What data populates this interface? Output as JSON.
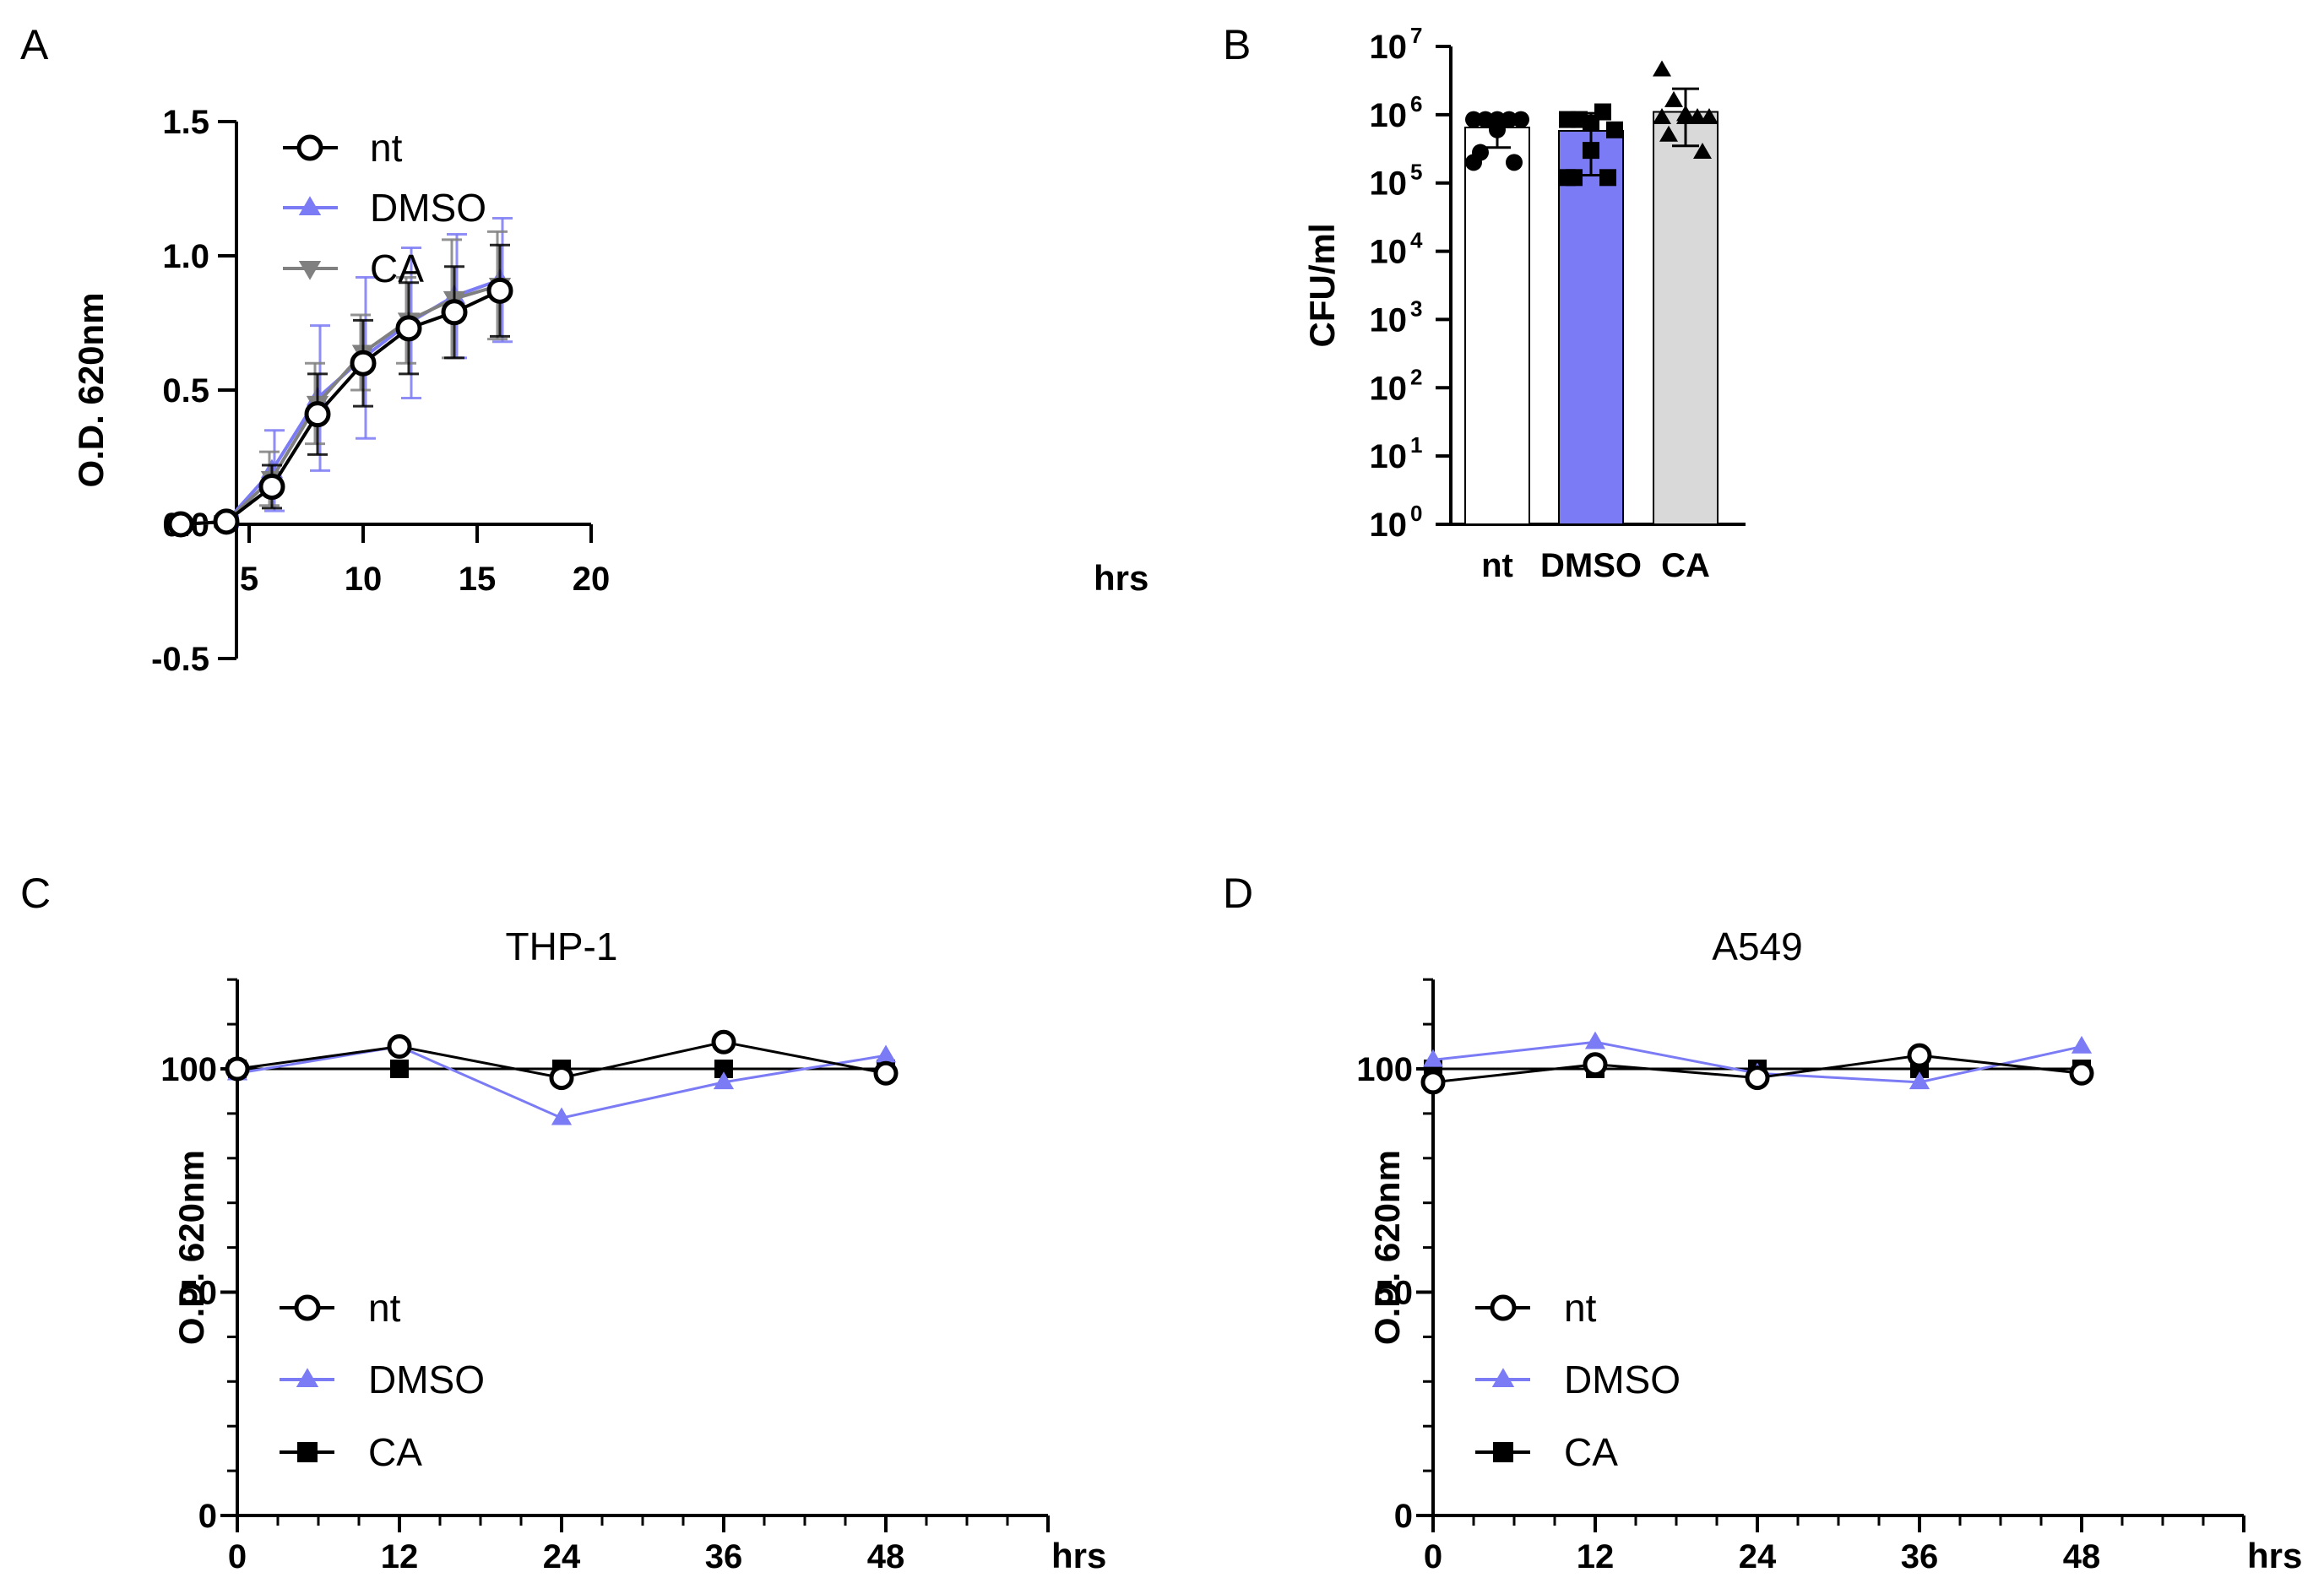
{
  "chart_data": [
    {
      "panel": "A",
      "type": "line",
      "title": "",
      "xlabel": "hrs",
      "ylabel": "O.D. 620nm",
      "xlim": [
        0,
        20
      ],
      "ylim": [
        -0.5,
        1.5
      ],
      "xticks": [
        5,
        10,
        15,
        20
      ],
      "yticks": [
        -0.5,
        0.0,
        0.5,
        1.0,
        1.5
      ],
      "ytick_labels": [
        "-0.5",
        "0.0",
        "0.5",
        "1.0",
        "1.5"
      ],
      "x": [
        2,
        4,
        6,
        8,
        10,
        12,
        14,
        16
      ],
      "series": [
        {
          "name": "nt",
          "color": "#000000",
          "marker": "circle-open",
          "values": [
            0.0,
            0.01,
            0.14,
            0.41,
            0.6,
            0.73,
            0.79,
            0.87
          ],
          "error": [
            0.01,
            0.02,
            0.08,
            0.15,
            0.16,
            0.17,
            0.17,
            0.17
          ]
        },
        {
          "name": "DMSO",
          "color": "#7b7bf5",
          "marker": "triangle-up",
          "values": [
            0.0,
            0.01,
            0.2,
            0.47,
            0.62,
            0.75,
            0.85,
            0.91
          ],
          "error": [
            0.01,
            0.02,
            0.15,
            0.27,
            0.3,
            0.28,
            0.23,
            0.23
          ]
        },
        {
          "name": "CA",
          "color": "#808080",
          "marker": "triangle-down",
          "values": [
            0.0,
            0.01,
            0.17,
            0.45,
            0.64,
            0.76,
            0.84,
            0.89
          ],
          "error": [
            0.01,
            0.02,
            0.1,
            0.15,
            0.14,
            0.16,
            0.22,
            0.2
          ]
        }
      ]
    },
    {
      "panel": "B",
      "type": "bar",
      "title": "",
      "xlabel": "",
      "ylabel": "CFU/ml",
      "scale": "log",
      "ylim": [
        1,
        10000000
      ],
      "ytick_exponents": [
        0,
        1,
        2,
        3,
        4,
        5,
        6,
        7
      ],
      "ytick_base": "10",
      "categories": [
        "nt",
        "DMSO",
        "CA"
      ],
      "values": [
        650000,
        580000,
        1100000
      ],
      "error_upper": [
        850000,
        1050000,
        2400000
      ],
      "error_lower": [
        330000,
        130000,
        350000
      ],
      "colors": [
        "#ffffff",
        "#7b7bf5",
        "#d9d9d9"
      ],
      "markers": [
        "circle",
        "square",
        "triangle-up"
      ],
      "points": [
        [
          850000,
          850000,
          850000,
          850000,
          850000,
          600000,
          280000,
          200000,
          200000
        ],
        [
          850000,
          850000,
          750000,
          1100000,
          600000,
          300000,
          120000,
          120000,
          120000
        ],
        [
          4500000,
          1600000,
          1000000,
          900000,
          900000,
          900000,
          500000,
          280000,
          900000
        ]
      ]
    },
    {
      "panel": "C",
      "type": "line",
      "title": "THP-1",
      "xlabel": "hrs",
      "ylabel": "O.D. 620nm",
      "xlim": [
        0,
        60
      ],
      "ylim": [
        0,
        120
      ],
      "xticks": [
        0,
        12,
        24,
        36,
        48
      ],
      "yticks": [
        0,
        50,
        100
      ],
      "x": [
        0,
        12,
        24,
        36,
        48
      ],
      "series": [
        {
          "name": "nt",
          "color": "#000000",
          "marker": "circle-open",
          "values": [
            100,
            105,
            98,
            106,
            99
          ]
        },
        {
          "name": "DMSO",
          "color": "#7b7bf5",
          "marker": "triangle-up",
          "values": [
            99,
            105,
            89,
            97,
            103
          ]
        },
        {
          "name": "CA",
          "color": "#000000",
          "marker": "square",
          "values": [
            100,
            100,
            100,
            100,
            100
          ]
        }
      ]
    },
    {
      "panel": "D",
      "type": "line",
      "title": "A549",
      "xlabel": "hrs",
      "ylabel": "O.D. 620nm",
      "xlim": [
        0,
        60
      ],
      "ylim": [
        0,
        120
      ],
      "xticks": [
        0,
        12,
        24,
        36,
        48
      ],
      "yticks": [
        0,
        50,
        100
      ],
      "x": [
        0,
        12,
        24,
        36,
        48
      ],
      "series": [
        {
          "name": "nt",
          "color": "#000000",
          "marker": "circle-open",
          "values": [
            97,
            101,
            98,
            103,
            99
          ]
        },
        {
          "name": "DMSO",
          "color": "#7b7bf5",
          "marker": "triangle-up",
          "values": [
            102,
            106,
            99,
            97,
            105
          ]
        },
        {
          "name": "CA",
          "color": "#000000",
          "marker": "square",
          "values": [
            100,
            100,
            100,
            100,
            100
          ]
        }
      ]
    }
  ]
}
